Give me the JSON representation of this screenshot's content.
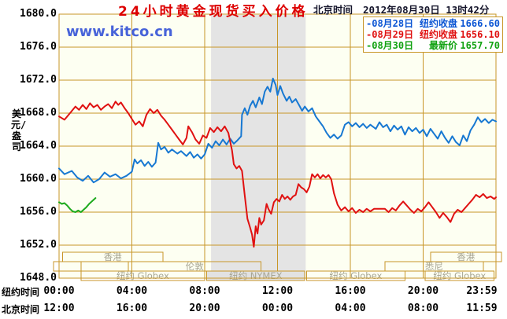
{
  "header": {
    "title": "24小时黄金现货买入价格",
    "timestamp_label": "北京时间",
    "timestamp": "2012年08月30日 13时42分"
  },
  "watermark": "www.kitco.cn",
  "legend": {
    "items": [
      {
        "date": "-08月28日",
        "label": "纽约收盘",
        "value": "1666.60",
        "color": "#0b55d4"
      },
      {
        "date": "-08月29日",
        "label": "纽约收盘",
        "value": "1656.10",
        "color": "#e01111"
      },
      {
        "date": "-08月30日",
        "label": "最新价",
        "value": "1657.70",
        "color": "#11a211"
      }
    ]
  },
  "axes": {
    "x_row1_label": "纽约时间",
    "x_row2_label": "北京时间"
  },
  "colors": {
    "grid": "#c89628",
    "frame": "#c89628",
    "plot_bg": "#fdfff2",
    "band": "#e4e4e4",
    "session_fill_nymex": "#e2e2e2",
    "session_label": "#a8a694",
    "title": "#dd0000",
    "watermark": "#4763d9",
    "axis_text": "#000000",
    "header_text": "#14142a"
  },
  "chart_data": {
    "type": "line",
    "title": "24小时黄金现货买入价格",
    "ylabel": "美元/盎司",
    "ylim": [
      1648,
      1680
    ],
    "yticks": [
      "1680.0",
      "1676.0",
      "1672.0",
      "1668.0",
      "1664.0",
      "1660.0",
      "1656.0",
      "1652.0",
      "1648.0"
    ],
    "grid": true,
    "highlight_band_hours": [
      8.35,
      13.55
    ],
    "xticks": {
      "hours": [
        0,
        4,
        8,
        12,
        16,
        20,
        23.983
      ],
      "ny": [
        "00:00",
        "04:00",
        "08:00",
        "12:00",
        "16:00",
        "20:00",
        "23:59"
      ],
      "beijing": [
        "12:00",
        "16:00",
        "20:00",
        "00:00",
        "04:00",
        "08:00",
        "11:59"
      ]
    },
    "sessions": [
      {
        "row": 1,
        "from": 0.2,
        "to": 5.7,
        "label": "香港"
      },
      {
        "row": 1,
        "from": 20.4,
        "to": 24.3,
        "label": "香港"
      },
      {
        "row": 2,
        "from": -0.3,
        "to": 1.2,
        "label": ""
      },
      {
        "row": 2,
        "from": 3.8,
        "to": 11.1,
        "label": "伦敦"
      },
      {
        "row": 2,
        "from": 17.9,
        "to": 23.3,
        "label": "悉尼"
      },
      {
        "row": 3,
        "from": 1.2,
        "to": 8.0,
        "label": "纽约 Globex"
      },
      {
        "row": 3,
        "from": 8.1,
        "to": 13.5,
        "label": "纽约 NYMEX",
        "fill": "#e2e2e2"
      },
      {
        "row": 3,
        "from": 13.6,
        "to": 19.0,
        "label": "纽约 Globex"
      },
      {
        "row": 3,
        "from": 20.1,
        "to": 23.9,
        "label": "纽约 Globex"
      }
    ],
    "series": [
      {
        "id": "aug28",
        "name": "08月28日",
        "close_label": "纽约收盘",
        "close": 1666.6,
        "color": "#1778d2",
        "points": [
          [
            0,
            1661.3
          ],
          [
            0.3,
            1660.6
          ],
          [
            0.7,
            1661.0
          ],
          [
            1.0,
            1660.2
          ],
          [
            1.3,
            1659.8
          ],
          [
            1.6,
            1660.4
          ],
          [
            1.9,
            1659.6
          ],
          [
            2.2,
            1660.0
          ],
          [
            2.5,
            1660.8
          ],
          [
            2.8,
            1660.3
          ],
          [
            3.1,
            1660.6
          ],
          [
            3.4,
            1660.1
          ],
          [
            3.7,
            1660.4
          ],
          [
            4.0,
            1660.9
          ],
          [
            4.15,
            1662.4
          ],
          [
            4.3,
            1661.9
          ],
          [
            4.5,
            1662.3
          ],
          [
            4.7,
            1661.6
          ],
          [
            4.9,
            1662.1
          ],
          [
            5.1,
            1661.5
          ],
          [
            5.3,
            1662.0
          ],
          [
            5.45,
            1664.4
          ],
          [
            5.6,
            1663.6
          ],
          [
            5.8,
            1663.9
          ],
          [
            6.0,
            1663.2
          ],
          [
            6.2,
            1663.6
          ],
          [
            6.5,
            1663.1
          ],
          [
            6.7,
            1663.4
          ],
          [
            7.0,
            1662.8
          ],
          [
            7.2,
            1663.3
          ],
          [
            7.4,
            1662.6
          ],
          [
            7.6,
            1663.0
          ],
          [
            7.8,
            1662.5
          ],
          [
            8.0,
            1663.0
          ],
          [
            8.2,
            1664.3
          ],
          [
            8.4,
            1663.8
          ],
          [
            8.6,
            1664.6
          ],
          [
            8.8,
            1664.1
          ],
          [
            9.0,
            1664.8
          ],
          [
            9.2,
            1664.2
          ],
          [
            9.4,
            1664.9
          ],
          [
            9.6,
            1664.3
          ],
          [
            9.8,
            1664.7
          ],
          [
            10.0,
            1665.2
          ],
          [
            10.05,
            1667.8
          ],
          [
            10.2,
            1668.6
          ],
          [
            10.35,
            1667.8
          ],
          [
            10.5,
            1668.9
          ],
          [
            10.65,
            1669.5
          ],
          [
            10.8,
            1668.7
          ],
          [
            11.0,
            1669.9
          ],
          [
            11.15,
            1669.1
          ],
          [
            11.3,
            1670.6
          ],
          [
            11.45,
            1671.2
          ],
          [
            11.6,
            1670.6
          ],
          [
            11.75,
            1672.2
          ],
          [
            11.9,
            1671.4
          ],
          [
            12.0,
            1670.2
          ],
          [
            12.15,
            1671.3
          ],
          [
            12.3,
            1670.4
          ],
          [
            12.5,
            1669.5
          ],
          [
            12.65,
            1670.0
          ],
          [
            12.8,
            1669.3
          ],
          [
            13.0,
            1669.7
          ],
          [
            13.2,
            1668.9
          ],
          [
            13.35,
            1668.3
          ],
          [
            13.5,
            1668.8
          ],
          [
            13.7,
            1668.2
          ],
          [
            13.9,
            1668.6
          ],
          [
            14.1,
            1667.6
          ],
          [
            14.3,
            1667.0
          ],
          [
            14.5,
            1666.4
          ],
          [
            14.7,
            1665.6
          ],
          [
            14.9,
            1665.0
          ],
          [
            15.1,
            1665.4
          ],
          [
            15.3,
            1664.9
          ],
          [
            15.5,
            1665.3
          ],
          [
            15.7,
            1666.6
          ],
          [
            15.9,
            1666.9
          ],
          [
            16.1,
            1666.4
          ],
          [
            16.3,
            1666.8
          ],
          [
            16.5,
            1666.3
          ],
          [
            16.7,
            1666.7
          ],
          [
            16.9,
            1666.2
          ],
          [
            17.1,
            1666.6
          ],
          [
            17.4,
            1666.1
          ],
          [
            17.6,
            1666.9
          ],
          [
            17.8,
            1666.3
          ],
          [
            18.0,
            1666.6
          ],
          [
            18.2,
            1665.8
          ],
          [
            18.4,
            1666.5
          ],
          [
            18.6,
            1666.0
          ],
          [
            18.8,
            1666.4
          ],
          [
            19.0,
            1665.4
          ],
          [
            19.2,
            1666.3
          ],
          [
            19.4,
            1665.8
          ],
          [
            19.6,
            1666.2
          ],
          [
            19.8,
            1665.6
          ],
          [
            20.0,
            1666.0
          ],
          [
            20.2,
            1665.2
          ],
          [
            20.4,
            1666.1
          ],
          [
            20.6,
            1665.5
          ],
          [
            20.8,
            1664.9
          ],
          [
            21.0,
            1665.8
          ],
          [
            21.2,
            1665.0
          ],
          [
            21.4,
            1664.4
          ],
          [
            21.6,
            1665.2
          ],
          [
            21.8,
            1664.5
          ],
          [
            22.0,
            1664.1
          ],
          [
            22.2,
            1665.3
          ],
          [
            22.4,
            1664.6
          ],
          [
            22.6,
            1665.9
          ],
          [
            22.8,
            1666.6
          ],
          [
            23.0,
            1667.5
          ],
          [
            23.2,
            1666.9
          ],
          [
            23.4,
            1667.3
          ],
          [
            23.6,
            1666.8
          ],
          [
            23.8,
            1667.2
          ],
          [
            24.0,
            1667.0
          ]
        ]
      },
      {
        "id": "aug29",
        "name": "08月29日",
        "close_label": "纽约收盘",
        "close": 1656.1,
        "color": "#e01111",
        "points": [
          [
            0,
            1667.6
          ],
          [
            0.3,
            1667.2
          ],
          [
            0.6,
            1668.0
          ],
          [
            0.9,
            1668.8
          ],
          [
            1.1,
            1668.4
          ],
          [
            1.3,
            1669.0
          ],
          [
            1.5,
            1668.5
          ],
          [
            1.7,
            1669.2
          ],
          [
            1.9,
            1668.7
          ],
          [
            2.1,
            1669.0
          ],
          [
            2.3,
            1668.4
          ],
          [
            2.5,
            1668.8
          ],
          [
            2.7,
            1669.1
          ],
          [
            2.9,
            1668.6
          ],
          [
            3.1,
            1669.4
          ],
          [
            3.25,
            1669.0
          ],
          [
            3.4,
            1669.3
          ],
          [
            3.6,
            1668.6
          ],
          [
            3.8,
            1668.0
          ],
          [
            4.0,
            1667.3
          ],
          [
            4.2,
            1666.6
          ],
          [
            4.4,
            1667.0
          ],
          [
            4.6,
            1666.4
          ],
          [
            4.8,
            1667.8
          ],
          [
            5.0,
            1668.5
          ],
          [
            5.2,
            1668.0
          ],
          [
            5.4,
            1668.4
          ],
          [
            5.6,
            1667.7
          ],
          [
            5.8,
            1667.2
          ],
          [
            6.0,
            1666.6
          ],
          [
            6.2,
            1666.0
          ],
          [
            6.4,
            1665.4
          ],
          [
            6.6,
            1664.8
          ],
          [
            6.8,
            1664.2
          ],
          [
            7.0,
            1665.0
          ],
          [
            7.1,
            1666.4
          ],
          [
            7.3,
            1665.7
          ],
          [
            7.5,
            1664.8
          ],
          [
            7.7,
            1664.3
          ],
          [
            7.9,
            1665.3
          ],
          [
            8.1,
            1665.0
          ],
          [
            8.3,
            1666.2
          ],
          [
            8.5,
            1665.7
          ],
          [
            8.7,
            1666.3
          ],
          [
            8.9,
            1665.8
          ],
          [
            9.1,
            1666.4
          ],
          [
            9.3,
            1665.6
          ],
          [
            9.5,
            1663.5
          ],
          [
            9.6,
            1661.8
          ],
          [
            9.75,
            1661.3
          ],
          [
            9.9,
            1661.6
          ],
          [
            10.05,
            1661.0
          ],
          [
            10.2,
            1658.0
          ],
          [
            10.35,
            1655.2
          ],
          [
            10.5,
            1654.1
          ],
          [
            10.6,
            1653.3
          ],
          [
            10.7,
            1651.8
          ],
          [
            10.8,
            1654.3
          ],
          [
            10.9,
            1653.4
          ],
          [
            11.0,
            1655.3
          ],
          [
            11.1,
            1654.5
          ],
          [
            11.25,
            1655.0
          ],
          [
            11.4,
            1657.0
          ],
          [
            11.5,
            1656.4
          ],
          [
            11.65,
            1655.8
          ],
          [
            11.8,
            1657.2
          ],
          [
            11.95,
            1657.6
          ],
          [
            12.1,
            1657.3
          ],
          [
            12.25,
            1658.1
          ],
          [
            12.4,
            1657.6
          ],
          [
            12.55,
            1657.9
          ],
          [
            12.7,
            1657.5
          ],
          [
            12.85,
            1657.9
          ],
          [
            13.0,
            1658.1
          ],
          [
            13.15,
            1659.4
          ],
          [
            13.3,
            1659.0
          ],
          [
            13.45,
            1658.8
          ],
          [
            13.6,
            1658.4
          ],
          [
            13.75,
            1659.1
          ],
          [
            13.9,
            1660.6
          ],
          [
            14.05,
            1660.2
          ],
          [
            14.2,
            1660.6
          ],
          [
            14.35,
            1660.1
          ],
          [
            14.5,
            1660.5
          ],
          [
            14.65,
            1660.2
          ],
          [
            14.8,
            1660.5
          ],
          [
            14.95,
            1660.0
          ],
          [
            15.1,
            1658.3
          ],
          [
            15.3,
            1656.9
          ],
          [
            15.5,
            1656.2
          ],
          [
            15.7,
            1656.6
          ],
          [
            15.9,
            1656.1
          ],
          [
            16.1,
            1656.5
          ],
          [
            16.3,
            1655.9
          ],
          [
            16.5,
            1656.3
          ],
          [
            16.7,
            1656.0
          ],
          [
            16.9,
            1656.4
          ],
          [
            17.1,
            1656.1
          ],
          [
            17.3,
            1656.4
          ],
          [
            17.5,
            1656.4
          ],
          [
            17.7,
            1656.4
          ],
          [
            17.9,
            1656.4
          ],
          [
            18.1,
            1656.0
          ],
          [
            18.3,
            1656.5
          ],
          [
            18.5,
            1656.2
          ],
          [
            18.7,
            1656.8
          ],
          [
            18.9,
            1657.3
          ],
          [
            19.1,
            1656.8
          ],
          [
            19.3,
            1656.3
          ],
          [
            19.5,
            1655.9
          ],
          [
            19.7,
            1656.4
          ],
          [
            19.9,
            1656.1
          ],
          [
            20.1,
            1656.6
          ],
          [
            20.3,
            1657.2
          ],
          [
            20.5,
            1656.6
          ],
          [
            20.7,
            1656.0
          ],
          [
            20.9,
            1655.3
          ],
          [
            21.1,
            1655.9
          ],
          [
            21.3,
            1655.4
          ],
          [
            21.5,
            1654.8
          ],
          [
            21.7,
            1655.8
          ],
          [
            21.9,
            1656.3
          ],
          [
            22.1,
            1656.0
          ],
          [
            22.3,
            1656.5
          ],
          [
            22.5,
            1657.0
          ],
          [
            22.7,
            1657.5
          ],
          [
            22.9,
            1658.1
          ],
          [
            23.1,
            1657.8
          ],
          [
            23.3,
            1658.2
          ],
          [
            23.5,
            1657.7
          ],
          [
            23.7,
            1657.9
          ],
          [
            23.9,
            1657.6
          ],
          [
            24.0,
            1657.8
          ]
        ]
      },
      {
        "id": "aug30",
        "name": "08月30日",
        "close_label": "最新价",
        "close": 1657.7,
        "color": "#1daa1d",
        "points": [
          [
            0,
            1657.2
          ],
          [
            0.15,
            1657.0
          ],
          [
            0.3,
            1657.1
          ],
          [
            0.45,
            1656.8
          ],
          [
            0.6,
            1656.4
          ],
          [
            0.75,
            1656.1
          ],
          [
            0.9,
            1656.0
          ],
          [
            1.05,
            1656.2
          ],
          [
            1.2,
            1656.0
          ],
          [
            1.35,
            1656.3
          ],
          [
            1.5,
            1656.6
          ],
          [
            1.65,
            1657.0
          ],
          [
            1.8,
            1657.3
          ],
          [
            1.9,
            1657.5
          ],
          [
            2.0,
            1657.7
          ]
        ]
      }
    ]
  }
}
